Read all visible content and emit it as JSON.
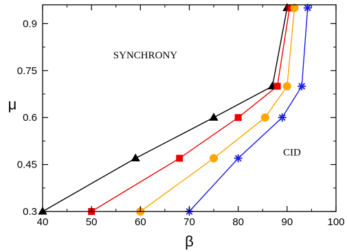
{
  "chart_data": {
    "type": "line",
    "title": "",
    "xlabel": "β",
    "ylabel": "μ",
    "xlim": [
      40,
      100
    ],
    "ylim": [
      0.3,
      0.96
    ],
    "x_ticks": [
      40,
      50,
      60,
      70,
      80,
      90,
      100
    ],
    "y_ticks": [
      0.3,
      0.45,
      0.6,
      0.75,
      0.9
    ],
    "x_tick_labels": [
      "40",
      "50",
      "60",
      "70",
      "80",
      "90",
      "100"
    ],
    "y_tick_labels": [
      "0.3",
      "0.45",
      "0.6",
      "0.75",
      "0.9"
    ],
    "grid": false,
    "annotations": [
      {
        "text": "SYNCHRONY",
        "x": 61,
        "y": 0.8
      },
      {
        "text": "CID",
        "x": 91,
        "y": 0.49
      }
    ],
    "series": [
      {
        "color": "#000000",
        "marker": "triangle",
        "x": [
          40,
          59,
          75,
          87,
          90
        ],
        "y": [
          0.3,
          0.47,
          0.6,
          0.7,
          0.95
        ]
      },
      {
        "color": "#ee0000",
        "marker": "square",
        "x": [
          50,
          68,
          80,
          88,
          90.5
        ],
        "y": [
          0.3,
          0.47,
          0.6,
          0.7,
          0.95
        ]
      },
      {
        "color": "#ffa500",
        "marker": "circle",
        "x": [
          60,
          75,
          85.5,
          90,
          91.5
        ],
        "y": [
          0.3,
          0.47,
          0.6,
          0.7,
          0.95
        ]
      },
      {
        "color": "#1a1aee",
        "marker": "star",
        "x": [
          70,
          80,
          89,
          93,
          94.2
        ],
        "y": [
          0.3,
          0.47,
          0.6,
          0.7,
          0.95
        ]
      }
    ]
  }
}
